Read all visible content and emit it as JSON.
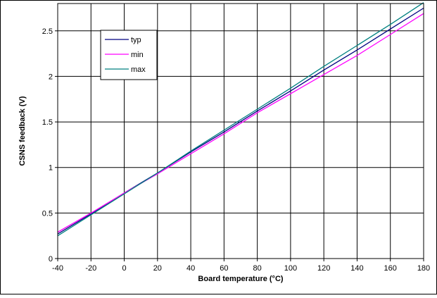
{
  "chart_data": {
    "type": "line",
    "title": "",
    "xlabel": "Board temperature (°C)",
    "ylabel": "CSNS feedback (V)",
    "xlim": [
      -40,
      180
    ],
    "ylim": [
      0,
      2.8
    ],
    "x_ticks": [
      "-40",
      "-20",
      "0",
      "20",
      "40",
      "60",
      "80",
      "100",
      "120",
      "140",
      "160",
      "180"
    ],
    "y_ticks": [
      "0",
      "0.5",
      "1",
      "1.5",
      "2",
      "2.5"
    ],
    "grid": true,
    "legend_position": "top-left",
    "series": [
      {
        "name": "typ",
        "color": "#000080",
        "x": [
          -40,
          -20,
          0,
          20,
          40,
          60,
          80,
          100,
          120,
          140,
          160,
          180
        ],
        "y": [
          0.27,
          0.49,
          0.72,
          0.94,
          1.17,
          1.39,
          1.62,
          1.84,
          2.07,
          2.29,
          2.52,
          2.75
        ]
      },
      {
        "name": "min",
        "color": "#ff00ff",
        "x": [
          -40,
          -20,
          0,
          20,
          40,
          60,
          80,
          100,
          120,
          140,
          160,
          180
        ],
        "y": [
          0.29,
          0.5,
          0.72,
          0.93,
          1.15,
          1.37,
          1.6,
          1.81,
          2.02,
          2.23,
          2.46,
          2.69
        ]
      },
      {
        "name": "max",
        "color": "#008080",
        "x": [
          -40,
          -20,
          0,
          20,
          40,
          60,
          80,
          100,
          120,
          140,
          160,
          180
        ],
        "y": [
          0.25,
          0.48,
          0.71,
          0.94,
          1.18,
          1.41,
          1.64,
          1.87,
          2.11,
          2.34,
          2.57,
          2.81
        ]
      }
    ]
  }
}
